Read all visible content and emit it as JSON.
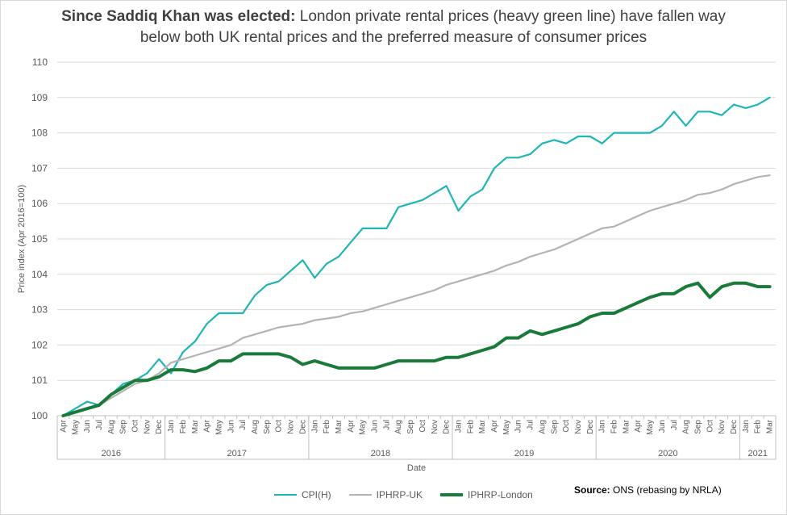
{
  "title": {
    "bold": "Since Saddiq Khan was elected:",
    "line1_rest": " London private rental prices (heavy green line) have fallen way",
    "line2": "below both UK rental prices and the preferred measure of consumer prices"
  },
  "source": {
    "label": "Source:",
    "text": " ONS (rebasing by NRLA)"
  },
  "chart_data": {
    "type": "line",
    "title": "Since Saddiq Khan was elected: London private rental prices (heavy green line) have fallen way below both UK rental prices and the preferred measure of consumer prices",
    "xlabel": "Date",
    "ylabel": "Price index (Apr 2016=100)",
    "ylim": [
      100,
      110
    ],
    "yticks": [
      100,
      101,
      102,
      103,
      104,
      105,
      106,
      107,
      108,
      109,
      110
    ],
    "grid": true,
    "legend_position": "bottom",
    "x": [
      "Apr",
      "May",
      "Jun",
      "Jul",
      "Aug",
      "Sep",
      "Oct",
      "Nov",
      "Dec",
      "Jan",
      "Feb",
      "Mar",
      "Apr",
      "May",
      "Jun",
      "Jul",
      "Aug",
      "Sep",
      "Oct",
      "Nov",
      "Dec",
      "Jan",
      "Feb",
      "Mar",
      "Apr",
      "May",
      "Jun",
      "Jul",
      "Aug",
      "Sep",
      "Oct",
      "Nov",
      "Dec",
      "Jan",
      "Feb",
      "Mar",
      "Apr",
      "May",
      "Jun",
      "Jul",
      "Aug",
      "Sep",
      "Oct",
      "Nov",
      "Dec",
      "Jan",
      "Feb",
      "Mar",
      "Apr",
      "May",
      "Jun",
      "Jul",
      "Aug",
      "Sep",
      "Oct",
      "Nov",
      "Dec",
      "Jan",
      "Feb",
      "Mar"
    ],
    "years": [
      {
        "label": "2016",
        "start": 0,
        "end": 8
      },
      {
        "label": "2017",
        "start": 9,
        "end": 20
      },
      {
        "label": "2018",
        "start": 21,
        "end": 32
      },
      {
        "label": "2019",
        "start": 33,
        "end": 44
      },
      {
        "label": "2020",
        "start": 45,
        "end": 56
      },
      {
        "label": "2021",
        "start": 57,
        "end": 59
      }
    ],
    "series": [
      {
        "name": "CPI(H)",
        "color": "#1fb5b5",
        "width": 2.2,
        "values": [
          100,
          100.2,
          100.4,
          100.3,
          100.6,
          100.9,
          101.0,
          101.2,
          101.6,
          101.2,
          101.8,
          102.1,
          102.6,
          102.9,
          102.9,
          102.9,
          103.4,
          103.7,
          103.8,
          104.1,
          104.4,
          103.9,
          104.3,
          104.5,
          104.9,
          105.3,
          105.3,
          105.3,
          105.9,
          106.0,
          106.1,
          106.3,
          106.5,
          105.8,
          106.2,
          106.4,
          107.0,
          107.3,
          107.3,
          107.4,
          107.7,
          107.8,
          107.7,
          107.9,
          107.9,
          107.7,
          108.0,
          108.0,
          108.0,
          108.0,
          108.2,
          108.6,
          108.2,
          108.6,
          108.6,
          108.5,
          108.8,
          108.7,
          108.8,
          109.0
        ]
      },
      {
        "name": "IPHRP-UK",
        "color": "#b3b3b3",
        "width": 2.2,
        "values": [
          100,
          100.1,
          100.2,
          100.3,
          100.5,
          100.7,
          100.9,
          101.0,
          101.2,
          101.5,
          101.6,
          101.7,
          101.8,
          101.9,
          102.0,
          102.2,
          102.3,
          102.4,
          102.5,
          102.55,
          102.6,
          102.7,
          102.75,
          102.8,
          102.9,
          102.95,
          103.05,
          103.15,
          103.25,
          103.35,
          103.45,
          103.55,
          103.7,
          103.8,
          103.9,
          104.0,
          104.1,
          104.25,
          104.35,
          104.5,
          104.6,
          104.7,
          104.85,
          105.0,
          105.15,
          105.3,
          105.35,
          105.5,
          105.65,
          105.8,
          105.9,
          106.0,
          106.1,
          106.25,
          106.3,
          106.4,
          106.55,
          106.65,
          106.75,
          106.8
        ]
      },
      {
        "name": "IPHRP-London",
        "color": "#1a7a3a",
        "width": 4,
        "values": [
          100,
          100.1,
          100.2,
          100.3,
          100.6,
          100.8,
          101.0,
          101.0,
          101.1,
          101.3,
          101.3,
          101.25,
          101.35,
          101.55,
          101.55,
          101.75,
          101.75,
          101.75,
          101.75,
          101.65,
          101.45,
          101.55,
          101.45,
          101.35,
          101.35,
          101.35,
          101.35,
          101.45,
          101.55,
          101.55,
          101.55,
          101.55,
          101.65,
          101.65,
          101.75,
          101.85,
          101.95,
          102.2,
          102.2,
          102.4,
          102.3,
          102.4,
          102.5,
          102.6,
          102.8,
          102.9,
          102.9,
          103.05,
          103.2,
          103.35,
          103.45,
          103.45,
          103.65,
          103.75,
          103.35,
          103.65,
          103.75,
          103.75,
          103.65,
          103.65
        ]
      }
    ]
  }
}
